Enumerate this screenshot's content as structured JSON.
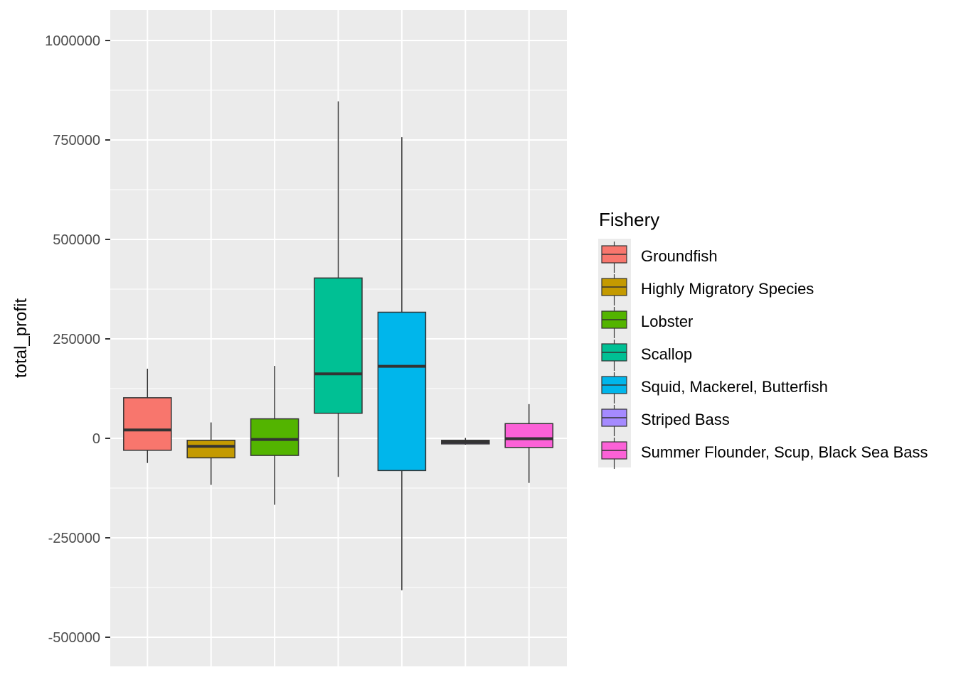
{
  "chart_data": {
    "type": "boxplot",
    "ylabel": "total_profit",
    "xlabel": "",
    "ylim": [
      -575000,
      1075000
    ],
    "yticks": [
      -500000,
      -250000,
      0,
      250000,
      500000,
      750000,
      1000000
    ],
    "ytick_labels": [
      "-500000",
      "-250000",
      "0",
      "250000",
      "500000",
      "750000",
      "1000000"
    ],
    "grid": true,
    "legend": {
      "title": "Fishery",
      "placement": "right"
    },
    "series": [
      {
        "name": "Groundfish",
        "color": "#F8766D",
        "whisker_low": -62000,
        "q1": -30000,
        "median": 21000,
        "q3": 102000,
        "whisker_high": 175000
      },
      {
        "name": "Highly Migratory Species",
        "color": "#C49A00",
        "whisker_low": -117000,
        "q1": -49000,
        "median": -20000,
        "q3": -5000,
        "whisker_high": 40000
      },
      {
        "name": "Lobster",
        "color": "#53B400",
        "whisker_low": -167000,
        "q1": -43000,
        "median": -3000,
        "q3": 49000,
        "whisker_high": 182000
      },
      {
        "name": "Scallop",
        "color": "#00C094",
        "whisker_low": -97000,
        "q1": 63000,
        "median": 162000,
        "q3": 403000,
        "whisker_high": 847000
      },
      {
        "name": "Squid, Mackerel, Butterfish",
        "color": "#00B6EB",
        "whisker_low": -382000,
        "q1": -81000,
        "median": 181000,
        "q3": 317000,
        "whisker_high": 757000
      },
      {
        "name": "Striped Bass",
        "color": "#A58AFF",
        "whisker_low": -16000,
        "q1": -14000,
        "median": -9000,
        "q3": -5000,
        "whisker_high": 1000
      },
      {
        "name": "Summer Flounder, Scup, Black Sea Bass",
        "color": "#FB61D7",
        "whisker_low": -112000,
        "q1": -23000,
        "median": -1000,
        "q3": 37000,
        "whisker_high": 86000
      }
    ]
  }
}
